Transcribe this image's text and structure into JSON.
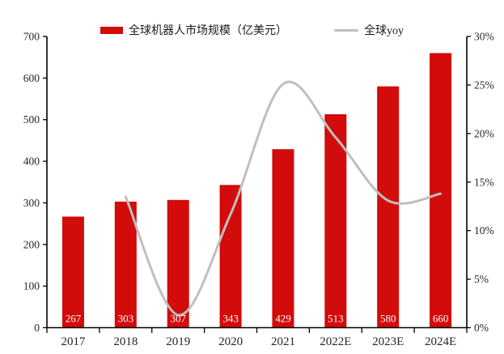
{
  "chart_data": {
    "type": "bar",
    "subtype": "bar+line-combo",
    "categories": [
      "2017",
      "2018",
      "2019",
      "2020",
      "2021",
      "2022E",
      "2023E",
      "2024E"
    ],
    "series": [
      {
        "name": "全球机器人市场规模（亿美元）",
        "type": "bar",
        "axis": "left",
        "values": [
          267,
          303,
          307,
          343,
          429,
          513,
          580,
          660
        ],
        "color": "#d20b0b",
        "label_color": "#ffffff"
      },
      {
        "name": "全球yoy",
        "type": "line",
        "smooth": true,
        "axis": "right",
        "values": [
          null,
          13.5,
          1.3,
          11.7,
          25.1,
          19.6,
          13.1,
          13.8
        ],
        "color": "#bfbfbf"
      }
    ],
    "left_axis": {
      "min": 0,
      "max": 700,
      "step": 100,
      "tick_labels": [
        "0",
        "100",
        "200",
        "300",
        "400",
        "500",
        "600",
        "700"
      ]
    },
    "right_axis": {
      "min": 0,
      "max": 30,
      "step": 5,
      "tick_labels": [
        "0%",
        "5%",
        "10%",
        "15%",
        "20%",
        "25%",
        "30%"
      ]
    },
    "grid": false,
    "legend_position": "top",
    "colors": {
      "bar": "#d20b0b",
      "line": "#bfbfbf",
      "axis": "#000000",
      "tick_text": "#262626",
      "bar_value_text": "#ffffff",
      "background": "#ffffff"
    }
  }
}
